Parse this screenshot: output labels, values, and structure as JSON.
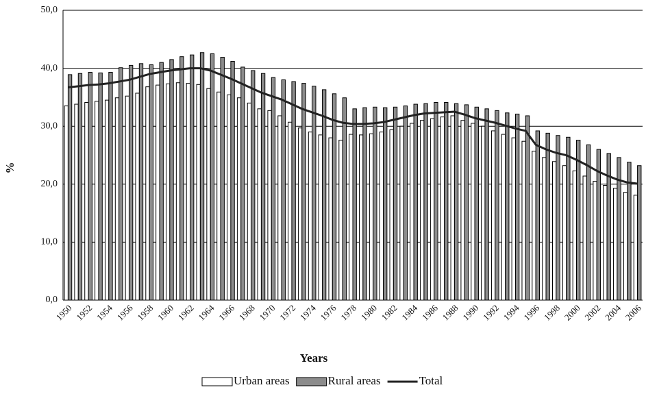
{
  "chart_data": {
    "type": "bar",
    "y_label": "%",
    "x_label": "Years",
    "categories": [
      "1950",
      null,
      "1952",
      null,
      "1954",
      null,
      "1956",
      null,
      "1958",
      null,
      "1960",
      null,
      "1962",
      null,
      "1964",
      null,
      "1966",
      null,
      "1968",
      null,
      "1970",
      null,
      "1972",
      null,
      "1974",
      null,
      "1976",
      null,
      "1978",
      null,
      "1980",
      null,
      "1982",
      null,
      "1984",
      null,
      "1986",
      null,
      "1988",
      null,
      "1990",
      null,
      "1992",
      null,
      "1994",
      null,
      "1996",
      null,
      "1998",
      null,
      "2000",
      null,
      "2002",
      null,
      "2004",
      null,
      "2006"
    ],
    "series": [
      {
        "name": "Urban areas",
        "color": "#ffffff",
        "values": [
          33.5,
          33.8,
          34.1,
          34.3,
          34.5,
          34.9,
          35.2,
          35.7,
          36.8,
          37.1,
          37.3,
          37.5,
          37.4,
          37.2,
          36.5,
          35.9,
          35.4,
          34.9,
          34.0,
          33.0,
          32.7,
          31.8,
          30.7,
          29.7,
          29.0,
          28.5,
          28.0,
          27.6,
          28.6,
          28.5,
          28.7,
          29.0,
          29.4,
          30.0,
          30.5,
          31.0,
          31.3,
          31.6,
          31.8,
          31.0,
          30.5,
          30.0,
          29.2,
          28.6,
          28.0,
          27.4,
          25.7,
          24.6,
          23.9,
          23.2,
          22.3,
          21.4,
          20.5,
          19.8,
          19.3,
          18.6,
          18.1
        ]
      },
      {
        "name": "Rural areas",
        "color": "#8c8c8c",
        "values": [
          38.9,
          39.1,
          39.3,
          39.2,
          39.3,
          40.1,
          40.5,
          40.8,
          40.6,
          41.0,
          41.5,
          42.0,
          42.3,
          42.7,
          42.5,
          41.9,
          41.2,
          40.2,
          39.6,
          39.1,
          38.4,
          38.0,
          37.7,
          37.4,
          36.9,
          36.3,
          35.6,
          34.9,
          33.0,
          33.2,
          33.3,
          33.2,
          33.3,
          33.5,
          33.8,
          33.9,
          34.1,
          34.1,
          33.9,
          33.7,
          33.3,
          33.0,
          32.7,
          32.3,
          32.1,
          31.8,
          29.2,
          28.8,
          28.4,
          28.1,
          27.6,
          26.8,
          26.0,
          25.3,
          24.6,
          23.8,
          23.2
        ]
      },
      {
        "name": "Total",
        "type": "line",
        "color": "#222222",
        "values": [
          36.7,
          36.9,
          37.1,
          37.2,
          37.4,
          37.7,
          38.0,
          38.5,
          39.0,
          39.3,
          39.6,
          39.8,
          40.0,
          40.0,
          39.6,
          38.9,
          38.2,
          37.4,
          36.6,
          35.8,
          35.2,
          34.6,
          33.8,
          33.0,
          32.4,
          31.8,
          31.1,
          30.6,
          30.4,
          30.4,
          30.5,
          30.7,
          31.1,
          31.5,
          31.9,
          32.2,
          32.3,
          32.4,
          32.5,
          32.0,
          31.4,
          31.0,
          30.6,
          30.1,
          29.6,
          29.2,
          26.8,
          26.0,
          25.4,
          25.0,
          24.2,
          23.3,
          22.3,
          21.5,
          20.8,
          20.3,
          20.1
        ]
      }
    ],
    "ylim": [
      0,
      50
    ],
    "yticks": [
      {
        "value": 0,
        "label": "0,0"
      },
      {
        "value": 10,
        "label": "10,0"
      },
      {
        "value": 20,
        "label": "20,0"
      },
      {
        "value": 30,
        "label": "30,0"
      },
      {
        "value": 40,
        "label": "40,0"
      },
      {
        "value": 50,
        "label": "50,0"
      }
    ],
    "grid": true,
    "legend": "bottom"
  }
}
